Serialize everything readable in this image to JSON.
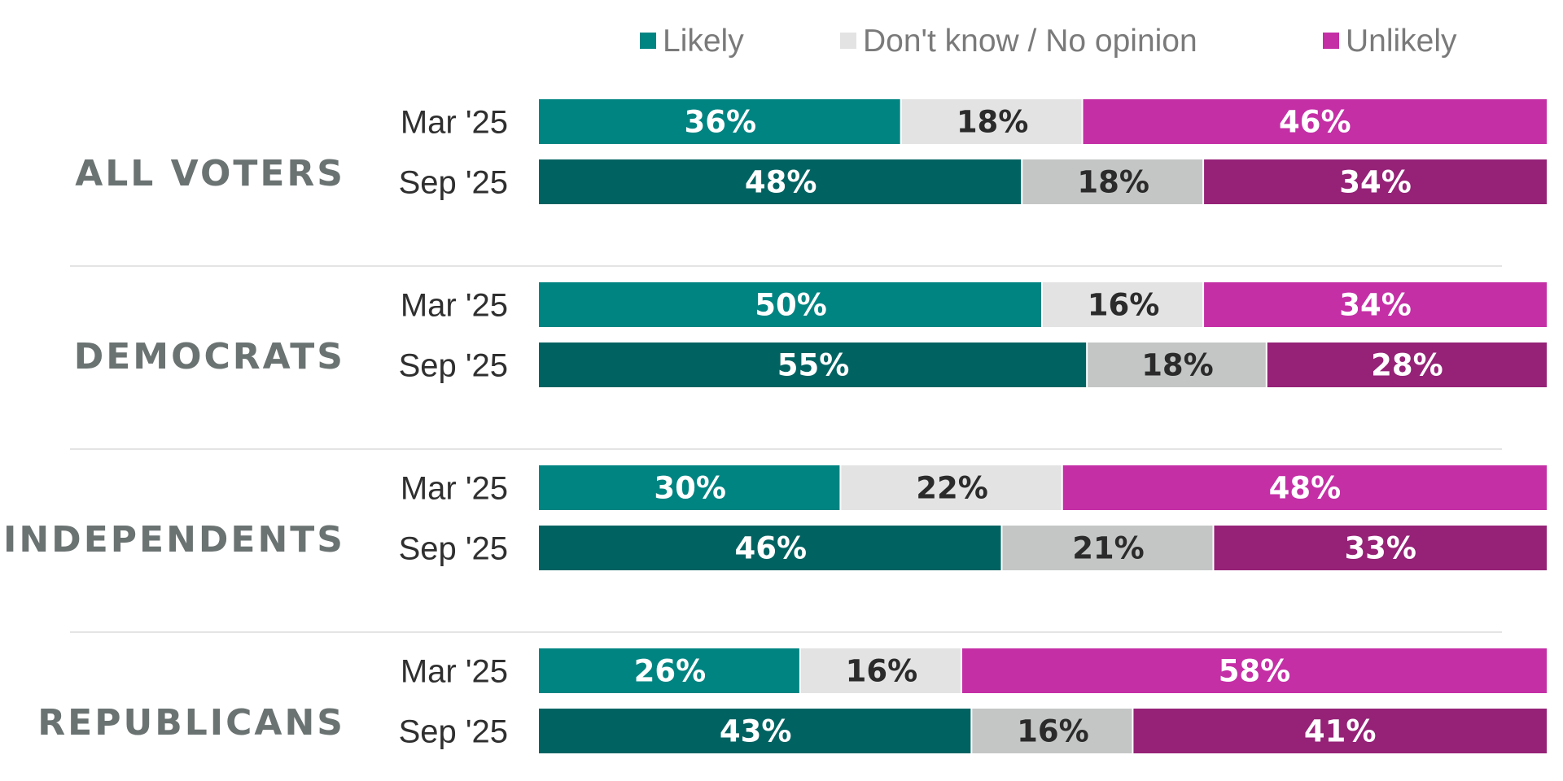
{
  "colors": {
    "likely": [
      "#008482",
      "#006362"
    ],
    "dk": [
      "#e2e3e2",
      "#c4c6c6"
    ],
    "unlikely": [
      "#c42fa6",
      "#952277"
    ],
    "label_light": "#ffffff",
    "label_dark": "#2b2b2b"
  },
  "chart_data": {
    "type": "bar",
    "orientation": "horizontal",
    "stacked": true,
    "unit": "%",
    "xlim": [
      0,
      100
    ],
    "legend_position": "top",
    "legend": [
      {
        "key": "likely",
        "label": "Likely"
      },
      {
        "key": "dk",
        "label": "Don't know / No opinion"
      },
      {
        "key": "unlikely",
        "label": "Unlikely"
      }
    ],
    "groups": [
      {
        "label": "ALL VOTERS",
        "rows": [
          {
            "period": "Mar '25",
            "likely": 36,
            "dk": 18,
            "unlikely": 46
          },
          {
            "period": "Sep '25",
            "likely": 48,
            "dk": 18,
            "unlikely": 34
          }
        ]
      },
      {
        "label": "DEMOCRATS",
        "rows": [
          {
            "period": "Mar '25",
            "likely": 50,
            "dk": 16,
            "unlikely": 34
          },
          {
            "period": "Sep '25",
            "likely": 55,
            "dk": 18,
            "unlikely": 28
          }
        ]
      },
      {
        "label": "INDEPENDENTS",
        "rows": [
          {
            "period": "Mar '25",
            "likely": 30,
            "dk": 22,
            "unlikely": 48
          },
          {
            "period": "Sep '25",
            "likely": 46,
            "dk": 21,
            "unlikely": 33
          }
        ]
      },
      {
        "label": "REPUBLICANS",
        "rows": [
          {
            "period": "Mar '25",
            "likely": 26,
            "dk": 16,
            "unlikely": 58
          },
          {
            "period": "Sep '25",
            "likely": 43,
            "dk": 16,
            "unlikely": 41
          }
        ]
      }
    ]
  }
}
